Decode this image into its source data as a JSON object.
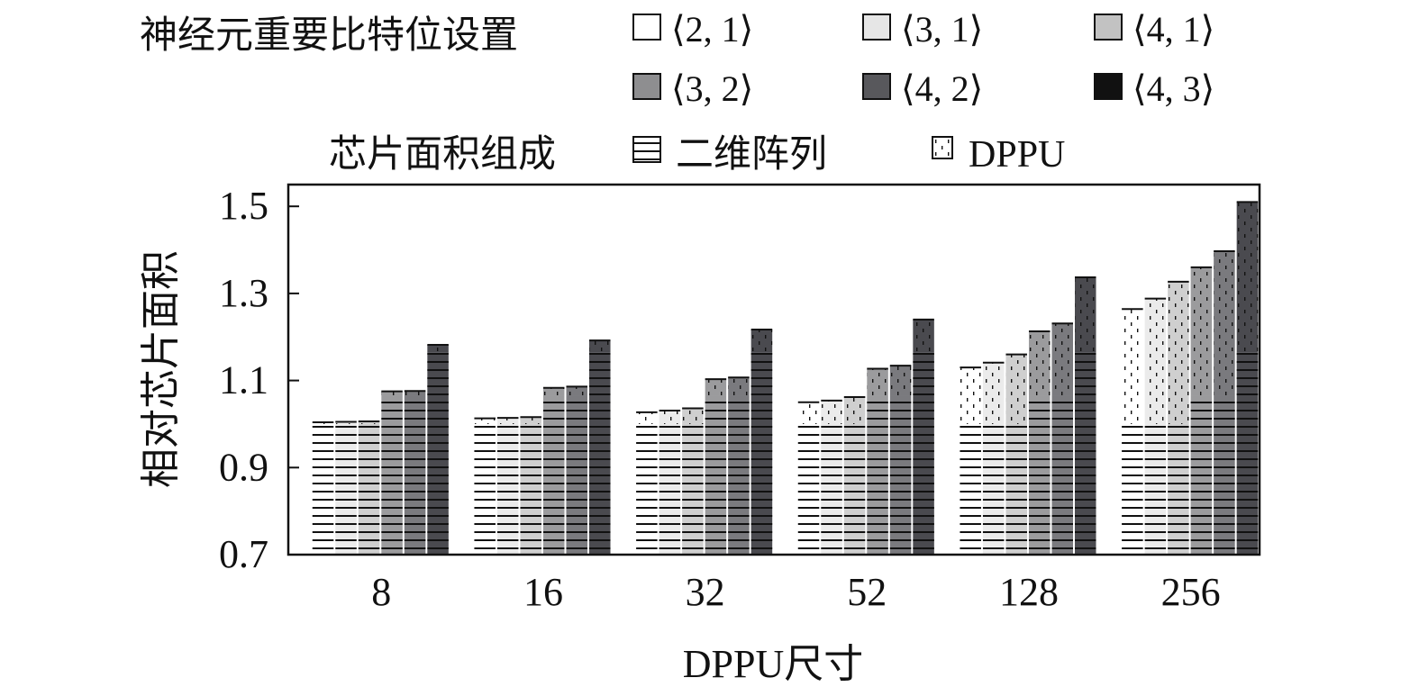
{
  "legend1": {
    "title": "神经元重要比特位设置",
    "entries": [
      "⟨2, 1⟩",
      "⟨3, 1⟩",
      "⟨4, 1⟩",
      "⟨3, 2⟩",
      "⟨4, 2⟩",
      "⟨4, 3⟩"
    ]
  },
  "legend2": {
    "title": "芯片面积组成",
    "entries": [
      "二维阵列",
      "DPPU"
    ]
  },
  "colors": {
    "series": [
      "#ffffff",
      "#e6e6e6",
      "#c2c2c2",
      "#8e8e90",
      "#58585c",
      "#111111"
    ],
    "bars": [
      "#ffffff",
      "#ebebeb",
      "#cfcfcf",
      "#9b9b9d",
      "#7a7a7e",
      "#4a4a4f"
    ]
  },
  "chart_data": {
    "type": "bar",
    "stacked": true,
    "xlabel": "DPPU尺寸",
    "ylabel": "相对芯片面积",
    "ylim": [
      0.7,
      1.55
    ],
    "yticks": [
      "0.7",
      "0.9",
      "1.1",
      "1.3",
      "1.5"
    ],
    "categories": [
      "8",
      "16",
      "32",
      "52",
      "128",
      "256"
    ],
    "groups": [
      "⟨2, 1⟩",
      "⟨3, 1⟩",
      "⟨4, 1⟩",
      "⟨3, 2⟩",
      "⟨4, 2⟩",
      "⟨4, 3⟩"
    ],
    "stack_components": [
      "二维阵列",
      "DPPU"
    ],
    "array_area": [
      1.0,
      1.0,
      1.0,
      1.065,
      1.065,
      1.165
    ],
    "total_area": [
      [
        1.004,
        1.005,
        1.006,
        1.075,
        1.076,
        1.182
      ],
      [
        1.013,
        1.014,
        1.016,
        1.083,
        1.086,
        1.192
      ],
      [
        1.027,
        1.031,
        1.036,
        1.103,
        1.107,
        1.217
      ],
      [
        1.05,
        1.054,
        1.062,
        1.127,
        1.134,
        1.24
      ],
      [
        1.13,
        1.141,
        1.16,
        1.213,
        1.231,
        1.337
      ],
      [
        1.264,
        1.288,
        1.327,
        1.36,
        1.397,
        1.51
      ]
    ],
    "grid": false,
    "legend_position": "top"
  }
}
